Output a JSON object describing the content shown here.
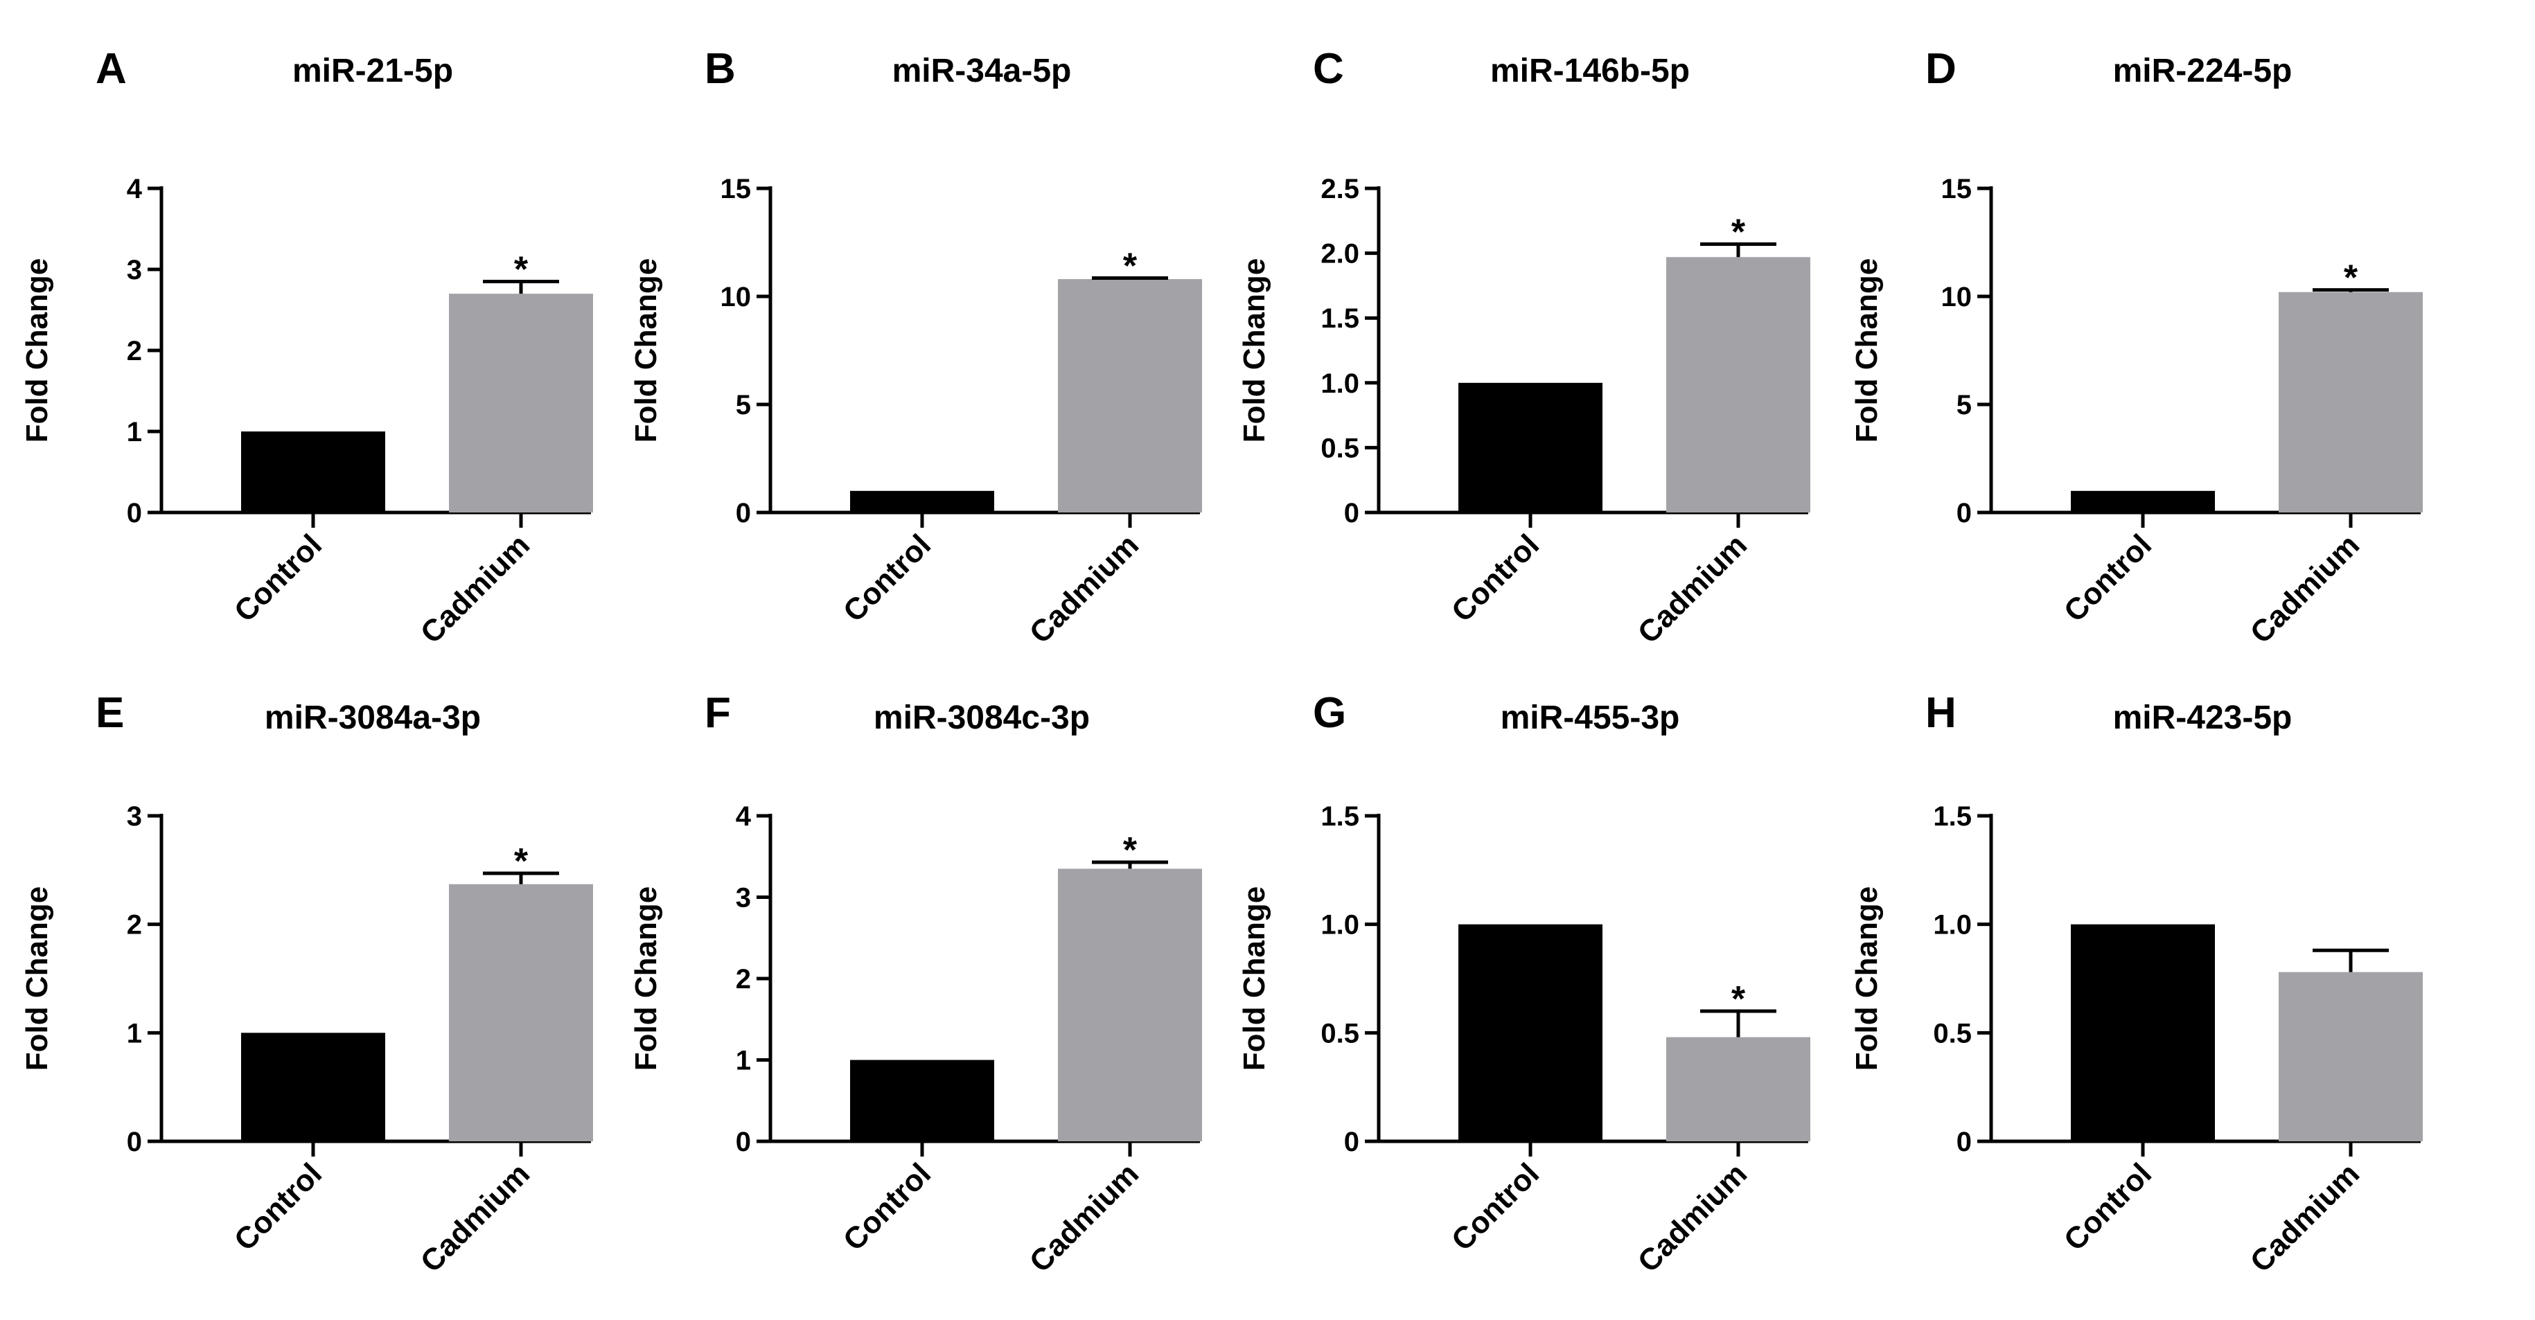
{
  "figure": {
    "bar_colors": {
      "Control": "#000000",
      "Cadmium": "#a3a2a6"
    },
    "axis_color": "#000000"
  },
  "chart_data": [
    {
      "panel": "A",
      "type": "bar",
      "title": "miR-21-5p",
      "xlabel": "",
      "ylabel": "Fold Change",
      "categories": [
        "Control",
        "Cadmium"
      ],
      "values": [
        1.0,
        2.7
      ],
      "errors": [
        0,
        0.15
      ],
      "ylim": [
        0,
        4
      ],
      "yticks": [
        0,
        1,
        2,
        3,
        4
      ],
      "ytick_labels": [
        "0",
        "1",
        "2",
        "3",
        "4"
      ],
      "significance": "*"
    },
    {
      "panel": "B",
      "type": "bar",
      "title": "miR-34a-5p",
      "xlabel": "",
      "ylabel": "Fold Change",
      "categories": [
        "Control",
        "Cadmium"
      ],
      "values": [
        1.0,
        10.8
      ],
      "errors": [
        0,
        0.05
      ],
      "ylim": [
        0,
        15
      ],
      "yticks": [
        0,
        5,
        10,
        15
      ],
      "ytick_labels": [
        "0",
        "5",
        "10",
        "15"
      ],
      "significance": "*"
    },
    {
      "panel": "C",
      "type": "bar",
      "title": "miR-146b-5p",
      "xlabel": "",
      "ylabel": "Fold Change",
      "categories": [
        "Control",
        "Cadmium"
      ],
      "values": [
        1.0,
        1.97
      ],
      "errors": [
        0,
        0.1
      ],
      "ylim": [
        0,
        2.5
      ],
      "yticks": [
        0,
        0.5,
        1.0,
        1.5,
        2.0,
        2.5
      ],
      "ytick_labels": [
        "0",
        "0.5",
        "1.0",
        "1.5",
        "2.0",
        "2.5"
      ],
      "significance": "*"
    },
    {
      "panel": "D",
      "type": "bar",
      "title": "miR-224-5p",
      "xlabel": "",
      "ylabel": "Fold Change",
      "categories": [
        "Control",
        "Cadmium"
      ],
      "values": [
        1.0,
        10.2
      ],
      "errors": [
        0,
        0.1
      ],
      "ylim": [
        0,
        15
      ],
      "yticks": [
        0,
        5,
        10,
        15
      ],
      "ytick_labels": [
        "0",
        "5",
        "10",
        "15"
      ],
      "significance": "*"
    },
    {
      "panel": "E",
      "type": "bar",
      "title": "miR-3084a-3p",
      "xlabel": "",
      "ylabel": "Fold Change",
      "categories": [
        "Control",
        "Cadmium"
      ],
      "values": [
        1.0,
        2.37
      ],
      "errors": [
        0,
        0.1
      ],
      "ylim": [
        0,
        3
      ],
      "yticks": [
        0,
        1,
        2,
        3
      ],
      "ytick_labels": [
        "0",
        "1",
        "2",
        "3"
      ],
      "significance": "*"
    },
    {
      "panel": "F",
      "type": "bar",
      "title": "miR-3084c-3p",
      "xlabel": "",
      "ylabel": "Fold Change",
      "categories": [
        "Control",
        "Cadmium"
      ],
      "values": [
        1.0,
        3.35
      ],
      "errors": [
        0,
        0.08
      ],
      "ylim": [
        0,
        4
      ],
      "yticks": [
        0,
        1,
        2,
        3,
        4
      ],
      "ytick_labels": [
        "0",
        "1",
        "2",
        "3",
        "4"
      ],
      "significance": "*"
    },
    {
      "panel": "G",
      "type": "bar",
      "title": "miR-455-3p",
      "xlabel": "",
      "ylabel": "Fold Change",
      "categories": [
        "Control",
        "Cadmium"
      ],
      "values": [
        1.0,
        0.48
      ],
      "errors": [
        0,
        0.12
      ],
      "ylim": [
        0,
        1.5
      ],
      "yticks": [
        0,
        0.5,
        1.0,
        1.5
      ],
      "ytick_labels": [
        "0",
        "0.5",
        "1.0",
        "1.5"
      ],
      "significance": "*"
    },
    {
      "panel": "H",
      "type": "bar",
      "title": "miR-423-5p",
      "xlabel": "",
      "ylabel": "Fold Change",
      "categories": [
        "Control",
        "Cadmium"
      ],
      "values": [
        1.0,
        0.78
      ],
      "errors": [
        0,
        0.1
      ],
      "ylim": [
        0,
        1.5
      ],
      "yticks": [
        0,
        0.5,
        1.0,
        1.5
      ],
      "ytick_labels": [
        "0",
        "0.5",
        "1.0",
        "1.5"
      ],
      "significance": ""
    }
  ]
}
